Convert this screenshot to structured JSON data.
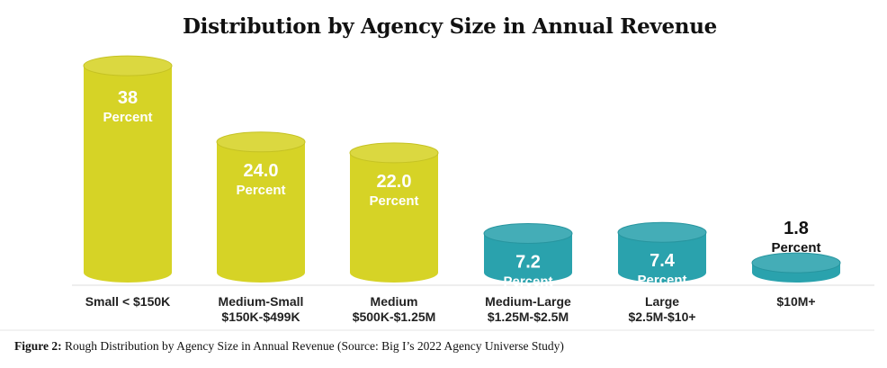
{
  "chart_data": {
    "type": "bar",
    "title": "Distribution by Agency Size in Annual Revenue",
    "categories": [
      [
        "Small < $150K"
      ],
      [
        "Medium-Small",
        "$150K-$499K"
      ],
      [
        "Medium",
        "$500K-$1.25M"
      ],
      [
        "Medium-Large",
        "$1.25M-$2.5M"
      ],
      [
        "Large",
        "$2.5M-$10+"
      ],
      [
        "$10M+"
      ]
    ],
    "values": [
      38,
      24.0,
      22.0,
      7.2,
      7.4,
      1.8
    ],
    "value_labels": [
      "38",
      "24.0",
      "22.0",
      "7.2",
      "7.4",
      "1.8"
    ],
    "unit_label": "Percent",
    "colors": [
      "#d6d326",
      "#d6d326",
      "#d6d326",
      "#2aa2ad",
      "#2aa2ad",
      "#2aa2ad"
    ],
    "xlabel": "",
    "ylabel": ""
  },
  "caption": {
    "prefix": "Figure 2:",
    "text": " Rough Distribution by Agency Size in Annual Revenue (Source: Big I’s 2022 Agency Universe Study)"
  }
}
